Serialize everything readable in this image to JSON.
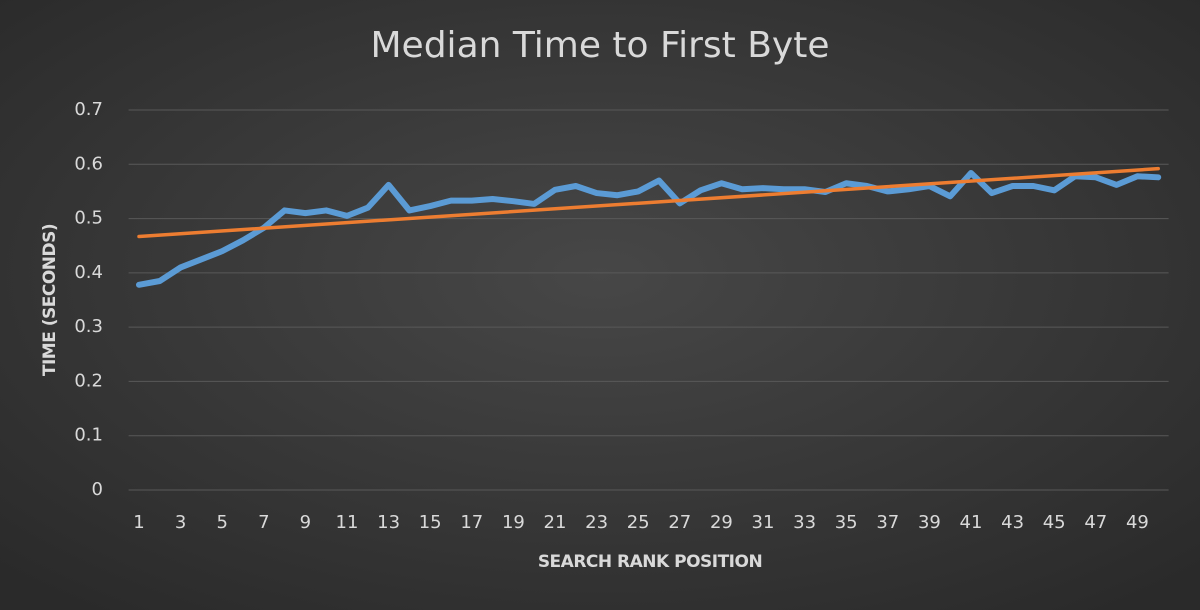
{
  "chart_data": {
    "type": "line",
    "title": "Median Time to First Byte",
    "x_label": "SEARCH RANK POSITION",
    "y_label": "TIME (SECONDS)",
    "categories": [
      1,
      null,
      3,
      null,
      5,
      null,
      7,
      null,
      9,
      null,
      11,
      null,
      13,
      null,
      15,
      null,
      17,
      null,
      19,
      null,
      21,
      null,
      23,
      null,
      25,
      null,
      27,
      null,
      29,
      null,
      31,
      null,
      33,
      null,
      35,
      null,
      37,
      null,
      39,
      null,
      41,
      null,
      43,
      null,
      45,
      null,
      47,
      null,
      49,
      null
    ],
    "series": [
      {
        "color": "#5b9bd5",
        "values": [
          0.378,
          0.385,
          0.41,
          0.425,
          0.44,
          0.46,
          0.483,
          0.515,
          0.51,
          0.515,
          0.505,
          0.52,
          0.562,
          0.515,
          0.523,
          0.533,
          0.533,
          0.536,
          0.532,
          0.527,
          0.553,
          0.56,
          0.547,
          0.543,
          0.55,
          0.57,
          0.528,
          0.552,
          0.565,
          0.554,
          0.556,
          0.554,
          0.554,
          0.549,
          0.565,
          0.56,
          0.55,
          0.554,
          0.56,
          0.541,
          0.584,
          0.547,
          0.56,
          0.56,
          0.552,
          0.578,
          0.576,
          0.562,
          0.578,
          0.576
        ]
      }
    ],
    "trendline": {
      "color": "#ed7d31",
      "x": [
        1,
        50
      ],
      "values": [
        0.467,
        0.592
      ]
    },
    "ylim": [
      0,
      0.7
    ],
    "yticks": [
      0,
      0.1,
      0.2,
      0.3,
      0.4,
      0.5,
      0.6,
      0.7
    ],
    "grid": true
  }
}
